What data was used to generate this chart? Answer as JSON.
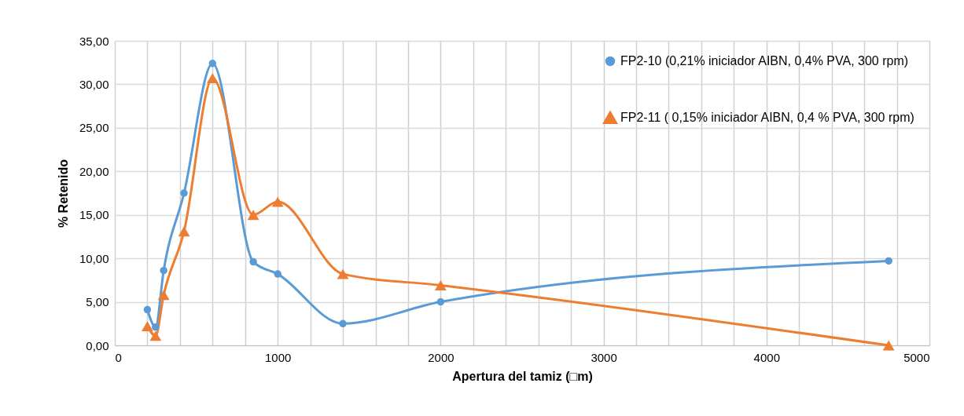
{
  "chart_data": {
    "type": "line",
    "xlabel": "Apertura del tamiz (□m)",
    "ylabel": "% Retenido",
    "x": [
      200,
      250,
      300,
      425,
      600,
      850,
      1000,
      1400,
      2000,
      4750
    ],
    "series": [
      {
        "name": "FP2-10 (0,21% iniciador AIBN, 0,4% PVA, 300 rpm)",
        "color": "#5b9bd5",
        "marker": "circle",
        "values": [
          4.1,
          2.1,
          8.6,
          17.5,
          32.4,
          9.6,
          8.2,
          2.5,
          5.0,
          9.7
        ]
      },
      {
        "name": "FP2-11 ( 0,15% iniciador AIBN, 0,4 % PVA, 300 rpm)",
        "color": "#ed7d31",
        "marker": "triangle",
        "values": [
          2.2,
          1.1,
          5.8,
          13.1,
          30.7,
          15.0,
          16.5,
          8.2,
          6.9,
          0.0
        ]
      }
    ],
    "xlim": [
      0,
      5000
    ],
    "xticks": [
      0,
      {
        "value": 200,
        "label": null
      },
      {
        "value": 400,
        "label": null
      },
      {
        "value": 600,
        "label": null
      },
      {
        "value": 800,
        "label": null
      },
      1000,
      {
        "value": 1200,
        "label": null
      },
      {
        "value": 1400,
        "label": null
      },
      {
        "value": 1600,
        "label": null
      },
      {
        "value": 1800,
        "label": null
      },
      2000,
      {
        "value": 2200,
        "label": null
      },
      {
        "value": 2400,
        "label": null
      },
      {
        "value": 2600,
        "label": null
      },
      {
        "value": 2800,
        "label": null
      },
      3000,
      {
        "value": 3200,
        "label": null
      },
      {
        "value": 3400,
        "label": null
      },
      {
        "value": 3600,
        "label": null
      },
      {
        "value": 3800,
        "label": null
      },
      4000,
      {
        "value": 4200,
        "label": null
      },
      {
        "value": 4400,
        "label": null
      },
      {
        "value": 4600,
        "label": null
      },
      {
        "value": 4800,
        "label": null
      },
      5000
    ],
    "ylim": [
      0,
      35
    ],
    "yticks": [
      {
        "value": 0,
        "label": "0,00"
      },
      {
        "value": 5,
        "label": "5,00"
      },
      {
        "value": 10,
        "label": "10,00"
      },
      {
        "value": 15,
        "label": "15,00"
      },
      {
        "value": 20,
        "label": "20,00"
      },
      {
        "value": 25,
        "label": "25,00"
      },
      {
        "value": 30,
        "label": "30,00"
      },
      {
        "value": 35,
        "label": "35,00"
      }
    ],
    "grid": true,
    "legend": "top right",
    "line_style": "solid"
  }
}
